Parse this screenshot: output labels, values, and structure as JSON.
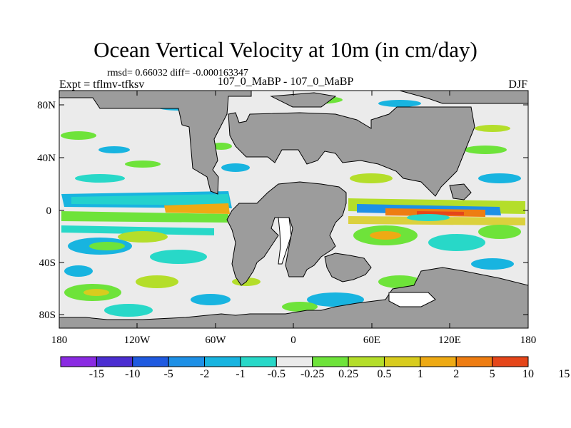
{
  "title": "Ocean Vertical Velocity at 10m (in cm/day)",
  "stats_text": "rmsd= 0.66032 diff= -0.000163347",
  "experiment_label": "Expt = tflmv-tfksv",
  "period_label": "107_0_MaBP - 107_0_MaBP",
  "season_label": "DJF",
  "axes": {
    "lat_labels": [
      "80N",
      "40N",
      "0",
      "40S",
      "80S"
    ],
    "lon_labels": [
      "180",
      "120W",
      "60W",
      "0",
      "60E",
      "120E",
      "180"
    ]
  },
  "colorbar": {
    "colors": [
      "#8a2be2",
      "#4b2ed1",
      "#1f5ae0",
      "#1e90e6",
      "#18b4e0",
      "#28d8c8",
      "#ebebeb",
      "#6ee33a",
      "#b4de2a",
      "#d8cc1e",
      "#eeaa14",
      "#ee7d12",
      "#e5461a"
    ],
    "labels": [
      "-15",
      "-10",
      "-5",
      "-2",
      "-1",
      "-0.5",
      "-0.25",
      "0.25",
      "0.5",
      "1",
      "2",
      "5",
      "10",
      "15"
    ]
  },
  "palette": {
    "land": "#9c9c9c",
    "background": "#ebebeb"
  }
}
